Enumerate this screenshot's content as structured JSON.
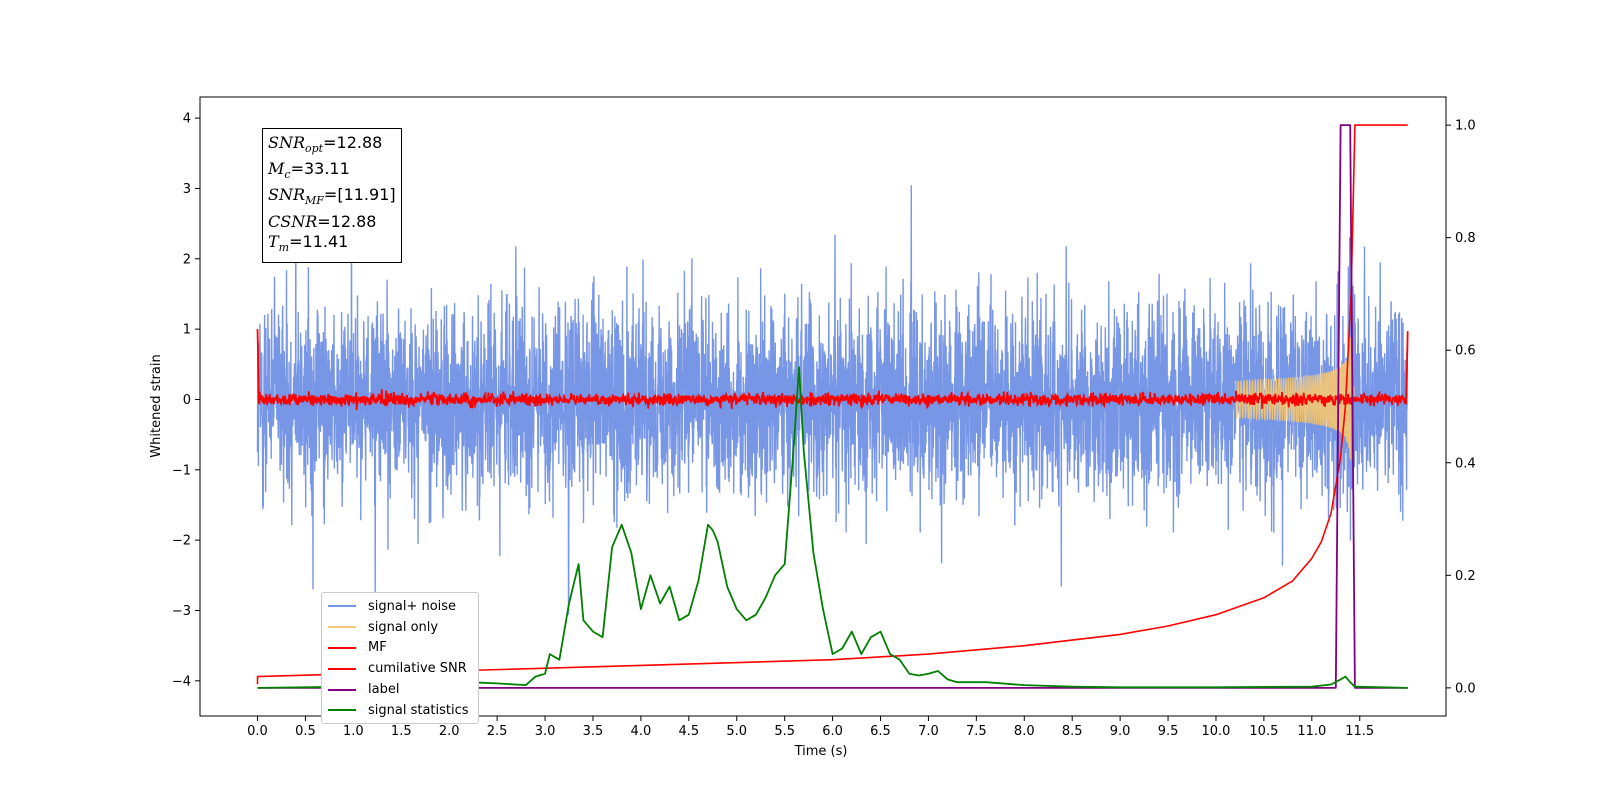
{
  "chart_data": {
    "type": "line",
    "xlabel": "Time (s)",
    "ylabel": "Whitened strain",
    "xlim": [
      -0.6,
      12.4
    ],
    "ylim": [
      -4.5,
      4.3
    ],
    "ylim_right": [
      -0.05,
      1.05
    ],
    "x_ticks": [
      "0.0",
      "0.5",
      "1.0",
      "1.5",
      "2.0",
      "2.5",
      "3.0",
      "3.5",
      "4.0",
      "4.5",
      "5.0",
      "5.5",
      "6.0",
      "6.5",
      "7.0",
      "7.5",
      "8.0",
      "8.5",
      "9.0",
      "9.5",
      "10.0",
      "10.5",
      "11.0",
      "11.5"
    ],
    "y_ticks": [
      "4",
      "3",
      "2",
      "1",
      "0",
      "−1",
      "−2",
      "−3",
      "−4"
    ],
    "y_ticks_right": [
      "0.0",
      "0.2",
      "0.4",
      "0.6",
      "0.8",
      "1.0"
    ],
    "grid": false,
    "legend_position": "lower-left",
    "series": [
      {
        "name": "signal+ noise",
        "color": "#7896e6",
        "axis": "left",
        "description": "noise ~ amplitude 1 std, 0–12 s"
      },
      {
        "name": "signal only",
        "color": "#f5c872",
        "axis": "left",
        "chirp_peak_time": 11.41,
        "peak_amplitude": 1.1
      },
      {
        "name": "MF",
        "color": "#ff0000",
        "axis": "left",
        "baseline": 0.0,
        "noise_std": 0.06,
        "edge_values": [
          1.0,
          0.97
        ]
      },
      {
        "name": "cumilative SNR",
        "color": "#ff0000",
        "axis": "right",
        "x": [
          0.0,
          2.0,
          4.0,
          6.0,
          7.0,
          8.0,
          9.0,
          9.5,
          10.0,
          10.5,
          10.8,
          11.0,
          11.1,
          11.2,
          11.3,
          11.35,
          11.41,
          11.45,
          12.0
        ],
        "y": [
          0.02,
          0.03,
          0.04,
          0.05,
          0.06,
          0.075,
          0.095,
          0.11,
          0.13,
          0.16,
          0.19,
          0.23,
          0.26,
          0.31,
          0.41,
          0.5,
          0.7,
          1.0,
          1.0
        ]
      },
      {
        "name": "label",
        "color": "#800080",
        "axis": "right",
        "x": [
          0.0,
          11.25,
          11.3,
          11.4,
          11.45,
          12.0
        ],
        "y": [
          0.0,
          0.0,
          1.0,
          1.0,
          0.0,
          0.0
        ]
      },
      {
        "name": "signal statistics",
        "color": "#008000",
        "axis": "right",
        "x": [
          0.0,
          0.5,
          1.0,
          1.5,
          2.0,
          2.2,
          2.5,
          2.8,
          2.9,
          3.0,
          3.05,
          3.15,
          3.25,
          3.35,
          3.4,
          3.5,
          3.6,
          3.7,
          3.8,
          3.9,
          4.0,
          4.1,
          4.2,
          4.3,
          4.4,
          4.5,
          4.6,
          4.7,
          4.75,
          4.8,
          4.9,
          5.0,
          5.1,
          5.2,
          5.3,
          5.4,
          5.5,
          5.6,
          5.65,
          5.7,
          5.8,
          5.9,
          6.0,
          6.1,
          6.2,
          6.3,
          6.4,
          6.5,
          6.6,
          6.7,
          6.8,
          6.9,
          7.0,
          7.1,
          7.2,
          7.3,
          7.6,
          8.0,
          8.5,
          9.0,
          10.0,
          11.0,
          11.2,
          11.3,
          11.35,
          11.4,
          11.45,
          12.0
        ],
        "y": [
          0.0,
          0.001,
          0.002,
          0.003,
          0.004,
          0.01,
          0.008,
          0.005,
          0.02,
          0.025,
          0.06,
          0.05,
          0.15,
          0.22,
          0.12,
          0.1,
          0.09,
          0.25,
          0.29,
          0.24,
          0.14,
          0.2,
          0.15,
          0.18,
          0.12,
          0.13,
          0.19,
          0.29,
          0.28,
          0.26,
          0.18,
          0.14,
          0.12,
          0.13,
          0.16,
          0.2,
          0.22,
          0.44,
          0.57,
          0.42,
          0.24,
          0.14,
          0.06,
          0.07,
          0.1,
          0.06,
          0.09,
          0.1,
          0.06,
          0.05,
          0.025,
          0.022,
          0.025,
          0.03,
          0.015,
          0.01,
          0.01,
          0.005,
          0.002,
          0.001,
          0.001,
          0.002,
          0.006,
          0.015,
          0.02,
          0.01,
          0.002,
          0.0
        ]
      }
    ]
  },
  "annotation": {
    "snr_opt": {
      "sym": "SNR",
      "sub": "opt",
      "val": "=12.88"
    },
    "mc": {
      "sym": "M",
      "sub": "c",
      "val": "=33.11"
    },
    "snr_mf": {
      "sym": "SNR",
      "sub": "MF",
      "val": "=[11.91]"
    },
    "csnr": {
      "sym": "CSNR",
      "val": "=12.88"
    },
    "tm": {
      "sym": "T",
      "sub": "m",
      "val": "=11.41"
    }
  }
}
